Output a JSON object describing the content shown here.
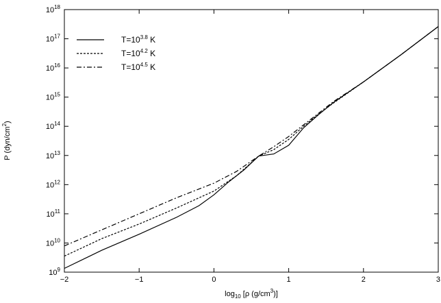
{
  "chart_data": {
    "type": "line",
    "title": "",
    "xlabel": {
      "pre": "log",
      "sub": "10",
      "mid": " [ρ (g/cm",
      "sup": "3",
      "post": ")]"
    },
    "ylabel": {
      "pre": "P (dyn/cm",
      "sup": "2",
      "post": ")"
    },
    "xlim": [
      -2,
      3
    ],
    "ylim": [
      9,
      18
    ],
    "y_scale": "log",
    "grid": false,
    "legend_position": "top-left",
    "x_ticks": [
      {
        "value": -2,
        "label": "−2"
      },
      {
        "value": -1,
        "label": "−1"
      },
      {
        "value": 0,
        "label": "0"
      },
      {
        "value": 1,
        "label": "1"
      },
      {
        "value": 2,
        "label": "2"
      },
      {
        "value": 3,
        "label": "3"
      }
    ],
    "y_ticks": [
      {
        "value": 9,
        "base": "10",
        "exp": "9"
      },
      {
        "value": 10,
        "base": "10",
        "exp": "10"
      },
      {
        "value": 11,
        "base": "10",
        "exp": "11"
      },
      {
        "value": 12,
        "base": "10",
        "exp": "12"
      },
      {
        "value": 13,
        "base": "10",
        "exp": "13"
      },
      {
        "value": 14,
        "base": "10",
        "exp": "14"
      },
      {
        "value": 15,
        "base": "10",
        "exp": "15"
      },
      {
        "value": 16,
        "base": "10",
        "exp": "16"
      },
      {
        "value": 17,
        "base": "10",
        "exp": "17"
      },
      {
        "value": 18,
        "base": "10",
        "exp": "18"
      }
    ],
    "series": [
      {
        "name": {
          "pre": "T=10",
          "sup": "3.8",
          "post": " K"
        },
        "dash": "solid",
        "x": [
          -2,
          -1.5,
          -1,
          -0.5,
          -0.2,
          0,
          0.2,
          0.4,
          0.6,
          0.8,
          1.0,
          1.2,
          1.4,
          1.6,
          2.0,
          2.5,
          3.0
        ],
        "y": [
          9.13,
          9.75,
          10.3,
          10.88,
          11.28,
          11.65,
          12.1,
          12.5,
          12.98,
          13.05,
          13.35,
          13.95,
          14.4,
          14.82,
          15.52,
          16.45,
          17.42
        ]
      },
      {
        "name": {
          "pre": "T=10",
          "sup": "4.2",
          "post": " K"
        },
        "dash": "dotted",
        "x": [
          -2,
          -1.5,
          -1,
          -0.5,
          0,
          0.3,
          0.6,
          0.8,
          1.0,
          1.2,
          1.4,
          1.6,
          2.0,
          2.5,
          3.0
        ],
        "y": [
          9.55,
          10.15,
          10.65,
          11.2,
          11.78,
          12.3,
          12.98,
          13.2,
          13.55,
          14.0,
          14.42,
          14.8,
          15.52,
          16.45,
          17.42
        ]
      },
      {
        "name": {
          "pre": "T=10",
          "sup": "4.5",
          "post": " K"
        },
        "dash": "dashdot",
        "x": [
          -2,
          -1.5,
          -1,
          -0.5,
          0,
          0.3,
          0.6,
          0.8,
          1.0,
          1.2,
          1.4,
          1.6,
          2.0,
          2.5,
          3.0
        ],
        "y": [
          9.9,
          10.45,
          11.0,
          11.55,
          12.05,
          12.45,
          12.98,
          13.3,
          13.65,
          14.05,
          14.45,
          14.85,
          15.52,
          16.45,
          17.42
        ]
      }
    ]
  }
}
